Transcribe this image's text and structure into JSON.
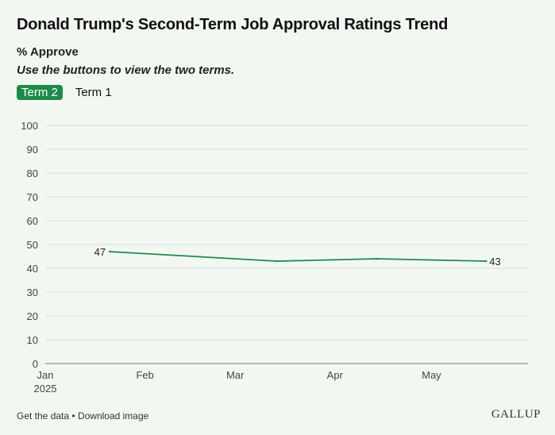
{
  "header": {
    "title": "Donald Trump's Second-Term Job Approval Ratings Trend",
    "subtitle": "% Approve",
    "note": "Use the buttons to view the two terms."
  },
  "tabs": [
    {
      "label": "Term 2",
      "active": true
    },
    {
      "label": "Term 1",
      "active": false
    }
  ],
  "footer": {
    "get_data": "Get the data",
    "separator": "•",
    "download": "Download image",
    "brand": "GALLUP"
  },
  "colors": {
    "line": "#1e8a4a",
    "grid": "#d8e0d6",
    "background": "#f2f8f1"
  },
  "chart_data": {
    "type": "line",
    "title": "Donald Trump's Second-Term Job Approval Ratings Trend",
    "subtitle": "% Approve",
    "xlabel": "",
    "ylabel": "",
    "ylim": [
      0,
      100
    ],
    "yticks": [
      0,
      10,
      20,
      30,
      40,
      50,
      60,
      70,
      80,
      90,
      100
    ],
    "xlim": [
      "2025-01-01",
      "2025-05-31"
    ],
    "xticks": [
      {
        "date": "2025-01-01",
        "label": "Jan",
        "sublabel": "2025"
      },
      {
        "date": "2025-02-01",
        "label": "Feb"
      },
      {
        "date": "2025-03-01",
        "label": "Mar"
      },
      {
        "date": "2025-04-01",
        "label": "Apr"
      },
      {
        "date": "2025-05-01",
        "label": "May"
      }
    ],
    "grid": true,
    "series": [
      {
        "points": [
          {
            "x": "2025-01-21",
            "y": 47,
            "label": "47"
          },
          {
            "x": "2025-03-14",
            "y": 43
          },
          {
            "x": "2025-04-14",
            "y": 44
          },
          {
            "x": "2025-05-18",
            "y": 43,
            "label": "43"
          }
        ]
      }
    ]
  }
}
